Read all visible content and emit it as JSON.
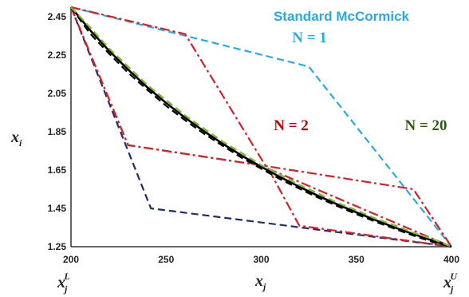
{
  "chart_data": {
    "type": "line",
    "xlim": [
      200,
      400
    ],
    "ylim": [
      1.25,
      2.5
    ],
    "x_ticks": [
      "200",
      "250",
      "300",
      "350",
      "400"
    ],
    "y_ticks": [
      "2.45",
      "2.25",
      "2.05",
      "1.85",
      "1.65",
      "1.45",
      "1.25"
    ],
    "xlabel": {
      "base": "x",
      "sub": "j"
    },
    "ylabel": {
      "base": "x",
      "sub": "i"
    },
    "x_bound_labels": {
      "lower": {
        "base": "x",
        "sub": "j",
        "sup": "L"
      },
      "upper": {
        "base": "x",
        "sub": "j",
        "sup": "U"
      }
    },
    "annotations": {
      "standard": {
        "text": "Standard McCormick",
        "color": "#29abe2"
      },
      "n1": {
        "text": "N = 1",
        "color": "#29abe2"
      },
      "n2": {
        "text": "N = 2",
        "color": "#c00000"
      },
      "n20": {
        "text": "N = 20",
        "color": "#2e5e0e"
      }
    },
    "series": [
      {
        "color": "#29abe2",
        "dash": "dashed",
        "x": [
          200,
          325,
          400
        ],
        "y": [
          2.5,
          2.19,
          1.25
        ]
      },
      {
        "color": "#1f2d6b",
        "dash": "dashed",
        "x": [
          200,
          242,
          400
        ],
        "y": [
          2.5,
          1.45,
          1.25
        ]
      },
      {
        "color": "#d4212a",
        "dash": "dashdot",
        "x": [
          200,
          260,
          303,
          400
        ],
        "y": [
          2.5,
          2.36,
          1.66,
          1.25
        ]
      },
      {
        "color": "#d4212a",
        "dash": "dashdot",
        "x": [
          200,
          230,
          303,
          380,
          400
        ],
        "y": [
          2.5,
          1.78,
          1.67,
          1.55,
          1.25
        ]
      },
      {
        "color": "#d4212a",
        "dash": "dashdot",
        "x": [
          200,
          230,
          303,
          320,
          400
        ],
        "y": [
          2.5,
          1.78,
          1.67,
          1.36,
          1.25
        ]
      },
      {
        "color": "#000000",
        "dash": "solid",
        "x": [
          200,
          210,
          220,
          230,
          240,
          250,
          260,
          270,
          280,
          290,
          300,
          310,
          320,
          330,
          340,
          350,
          360,
          370,
          380,
          390,
          400
        ],
        "y": [
          2.5,
          2.381,
          2.273,
          2.174,
          2.083,
          2.0,
          1.923,
          1.852,
          1.786,
          1.724,
          1.667,
          1.613,
          1.563,
          1.515,
          1.471,
          1.429,
          1.389,
          1.351,
          1.316,
          1.282,
          1.25
        ]
      },
      {
        "color": "#000000",
        "dash": "dashed",
        "x": [
          200,
          210,
          220,
          230,
          240,
          250,
          260,
          270,
          280,
          290,
          300,
          310,
          320,
          330,
          340,
          350,
          360,
          370,
          380,
          390,
          400
        ],
        "y": [
          2.5,
          2.363,
          2.258,
          2.158,
          2.07,
          1.985,
          1.91,
          1.839,
          1.775,
          1.713,
          1.657,
          1.602,
          1.553,
          1.506,
          1.462,
          1.42,
          1.381,
          1.344,
          1.308,
          1.275,
          1.25
        ]
      },
      {
        "color": "#7dbb2a",
        "dash": "dashed",
        "x": [
          200,
          210,
          220,
          230,
          240,
          250,
          260,
          270,
          280,
          290,
          300,
          310,
          320,
          330,
          340,
          350,
          360,
          370,
          380,
          390,
          400
        ],
        "y": [
          2.5,
          2.395,
          2.285,
          2.19,
          2.095,
          2.015,
          1.935,
          1.866,
          1.797,
          1.738,
          1.676,
          1.626,
          1.572,
          1.528,
          1.479,
          1.44,
          1.397,
          1.362,
          1.323,
          1.291,
          1.25
        ]
      }
    ]
  }
}
